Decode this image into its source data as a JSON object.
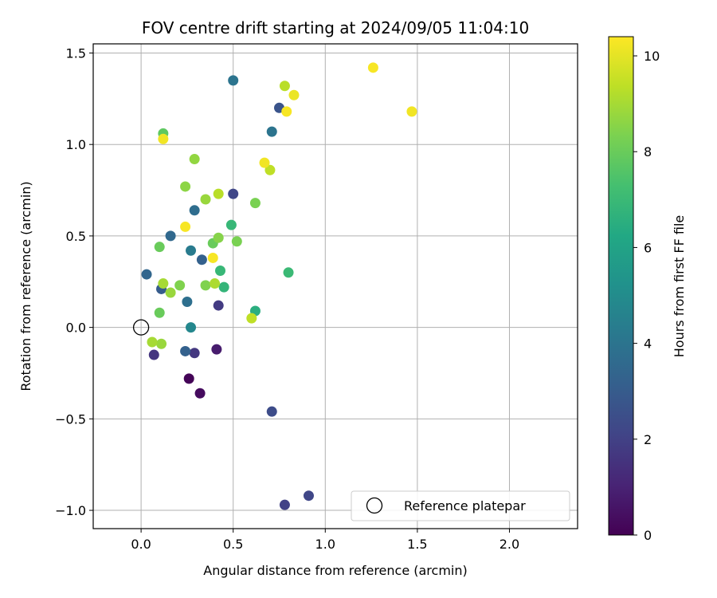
{
  "chart_data": {
    "type": "scatter",
    "title": "FOV centre drift starting at 2024/09/05 11:04:10",
    "xlabel": "Angular distance from reference (arcmin)",
    "ylabel": "Rotation from reference (arcmin)",
    "xlim": [
      -0.26,
      2.37
    ],
    "ylim": [
      -1.1,
      1.55
    ],
    "xticks": [
      0.0,
      0.5,
      1.0,
      1.5,
      2.0
    ],
    "xtick_labels": [
      "0.0",
      "0.5",
      "1.0",
      "1.5",
      "2.0"
    ],
    "yticks": [
      -1.0,
      -0.5,
      0.0,
      0.5,
      1.0,
      1.5
    ],
    "ytick_labels": [
      "−1.0",
      "−0.5",
      "0.0",
      "0.5",
      "1.0",
      "1.5"
    ],
    "grid": true,
    "colormap": "viridis",
    "colorbar": {
      "label": "Hours from first FF file",
      "range": [
        0,
        10.4
      ],
      "ticks": [
        0,
        2,
        4,
        6,
        8,
        10
      ],
      "tick_labels": [
        "0",
        "2",
        "4",
        "6",
        "8",
        "10"
      ]
    },
    "legend": {
      "position": "lower-right",
      "entries": [
        "Reference platepar"
      ]
    },
    "reference_point": {
      "x": 0.0,
      "y": 0.0
    },
    "points": [
      {
        "x": 0.26,
        "y": -0.28,
        "h": 0.1
      },
      {
        "x": 0.32,
        "y": -0.36,
        "h": 0.3
      },
      {
        "x": 0.41,
        "y": -0.12,
        "h": 0.8
      },
      {
        "x": 0.07,
        "y": -0.15,
        "h": 1.6
      },
      {
        "x": 0.29,
        "y": -0.14,
        "h": 1.7
      },
      {
        "x": 0.42,
        "y": 0.12,
        "h": 1.8
      },
      {
        "x": 0.78,
        "y": -0.97,
        "h": 2.0
      },
      {
        "x": 0.91,
        "y": -0.92,
        "h": 2.2
      },
      {
        "x": 0.71,
        "y": -0.46,
        "h": 2.4
      },
      {
        "x": 0.5,
        "y": 0.73,
        "h": 2.2
      },
      {
        "x": 0.75,
        "y": 1.2,
        "h": 2.7
      },
      {
        "x": 0.11,
        "y": 0.21,
        "h": 3.0
      },
      {
        "x": 0.24,
        "y": -0.13,
        "h": 3.2
      },
      {
        "x": 0.33,
        "y": 0.37,
        "h": 3.2
      },
      {
        "x": 0.03,
        "y": 0.29,
        "h": 3.4
      },
      {
        "x": 0.16,
        "y": 0.5,
        "h": 3.5
      },
      {
        "x": 0.29,
        "y": 0.64,
        "h": 3.7
      },
      {
        "x": 0.25,
        "y": 0.14,
        "h": 3.8
      },
      {
        "x": 0.5,
        "y": 1.35,
        "h": 4.0
      },
      {
        "x": 0.71,
        "y": 1.07,
        "h": 4.0
      },
      {
        "x": 0.27,
        "y": 0.42,
        "h": 4.3
      },
      {
        "x": 0.27,
        "y": 0.0,
        "h": 4.8
      },
      {
        "x": 0.62,
        "y": 0.09,
        "h": 6.5
      },
      {
        "x": 0.45,
        "y": 0.22,
        "h": 6.8
      },
      {
        "x": 0.43,
        "y": 0.31,
        "h": 6.9
      },
      {
        "x": 0.49,
        "y": 0.56,
        "h": 6.9
      },
      {
        "x": 0.8,
        "y": 0.3,
        "h": 7.0
      },
      {
        "x": 0.12,
        "y": 1.06,
        "h": 7.8
      },
      {
        "x": 0.1,
        "y": 0.08,
        "h": 8.0
      },
      {
        "x": 0.1,
        "y": 0.44,
        "h": 8.0
      },
      {
        "x": 0.39,
        "y": 0.46,
        "h": 8.0
      },
      {
        "x": 0.52,
        "y": 0.47,
        "h": 8.3
      },
      {
        "x": 0.62,
        "y": 0.68,
        "h": 8.3
      },
      {
        "x": 0.21,
        "y": 0.23,
        "h": 8.4
      },
      {
        "x": 0.24,
        "y": 0.77,
        "h": 8.6
      },
      {
        "x": 0.35,
        "y": 0.23,
        "h": 8.4
      },
      {
        "x": 0.29,
        "y": 0.92,
        "h": 8.7
      },
      {
        "x": 0.42,
        "y": 0.49,
        "h": 8.5
      },
      {
        "x": 0.35,
        "y": 0.7,
        "h": 8.8
      },
      {
        "x": 0.11,
        "y": -0.09,
        "h": 8.8
      },
      {
        "x": 0.06,
        "y": -0.08,
        "h": 9.0
      },
      {
        "x": 0.12,
        "y": 0.24,
        "h": 9.0
      },
      {
        "x": 0.16,
        "y": 0.19,
        "h": 8.8
      },
      {
        "x": 0.4,
        "y": 0.24,
        "h": 9.1
      },
      {
        "x": 0.42,
        "y": 0.73,
        "h": 9.3
      },
      {
        "x": 0.7,
        "y": 0.86,
        "h": 9.4
      },
      {
        "x": 0.6,
        "y": 0.05,
        "h": 9.4
      },
      {
        "x": 0.78,
        "y": 1.32,
        "h": 9.3
      },
      {
        "x": 0.12,
        "y": 1.03,
        "h": 10.2
      },
      {
        "x": 0.24,
        "y": 0.55,
        "h": 10.3
      },
      {
        "x": 0.39,
        "y": 0.38,
        "h": 10.3
      },
      {
        "x": 0.67,
        "y": 0.9,
        "h": 10.2
      },
      {
        "x": 0.79,
        "y": 1.18,
        "h": 10.3
      },
      {
        "x": 0.83,
        "y": 1.27,
        "h": 10.1
      },
      {
        "x": 1.26,
        "y": 1.42,
        "h": 10.3
      },
      {
        "x": 1.47,
        "y": 1.18,
        "h": 10.2
      }
    ]
  }
}
